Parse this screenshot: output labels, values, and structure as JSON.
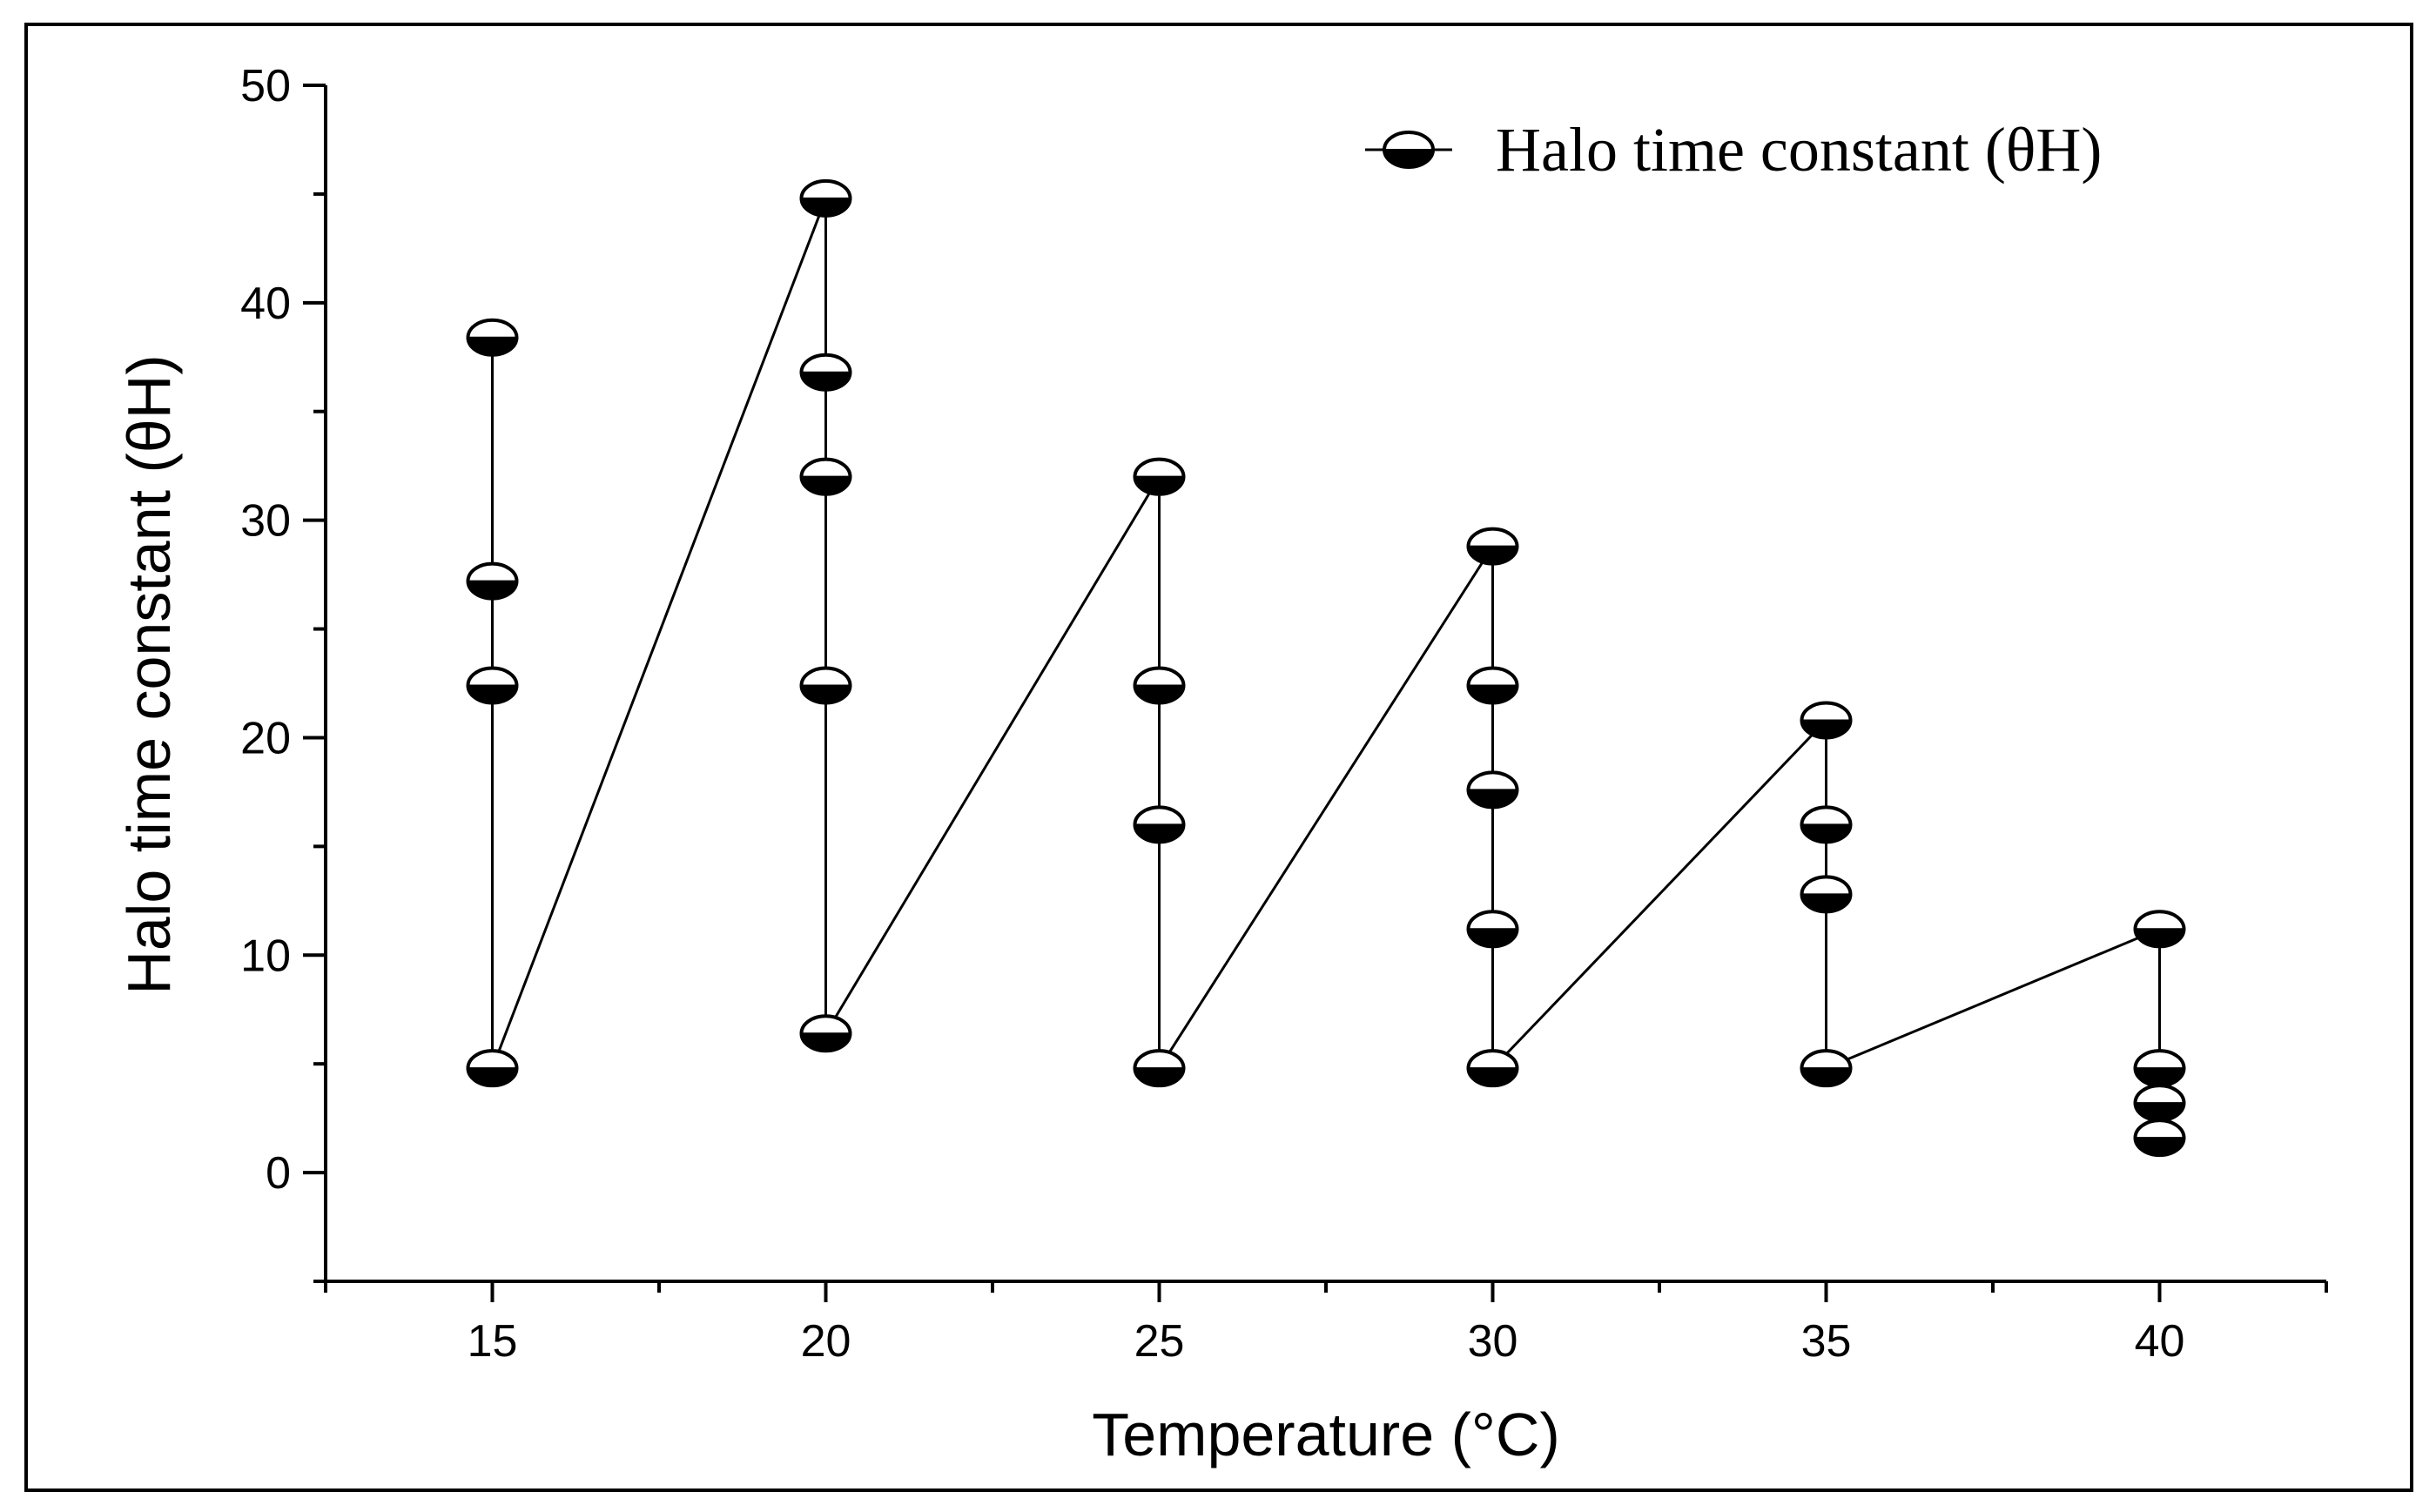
{
  "chart_data": {
    "type": "line",
    "title": "",
    "xlabel": "Temperature (°C)",
    "ylabel": "Halo time constant (θH)",
    "xlim": [
      12.5,
      42.5
    ],
    "ylim": [
      -5,
      50
    ],
    "x_ticks": [
      15,
      20,
      25,
      30,
      35,
      40
    ],
    "y_ticks": [
      0,
      10,
      20,
      30,
      40,
      50
    ],
    "x_minor_ticks": [
      12.5,
      17.5,
      22.5,
      27.5,
      32.5,
      37.5,
      42.5
    ],
    "y_minor_ticks": [
      -5,
      5,
      15,
      25,
      35,
      45
    ],
    "legend": {
      "position": "top-right",
      "entries": [
        "Halo time constant (θH)"
      ]
    },
    "marker": "half-filled circle (bottom half black)",
    "series": [
      {
        "name": "Halo time constant (θH)",
        "x": [
          15,
          15,
          15,
          15,
          20,
          20,
          20,
          20,
          20,
          25,
          25,
          25,
          25,
          30,
          30,
          30,
          30,
          30,
          35,
          35,
          35,
          35,
          40,
          40,
          40,
          40
        ],
        "y": [
          38.4,
          27.2,
          22.4,
          4.8,
          44.8,
          36.8,
          32,
          22.4,
          6.4,
          32,
          22.4,
          16,
          4.8,
          28.8,
          22.4,
          17.6,
          11.2,
          4.8,
          20.8,
          16,
          12.8,
          4.8,
          11.2,
          4.8,
          3.2,
          1.6
        ]
      }
    ]
  }
}
